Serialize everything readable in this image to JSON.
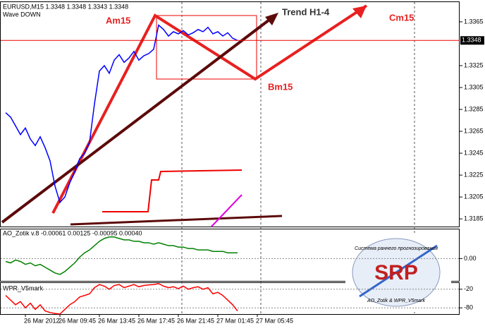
{
  "chart_data": [
    {
      "type": "line",
      "title": "EURUSD,M15  1.3348 1.3348 1.3343 1.3348",
      "subtitle": "Wave DOWN",
      "color": "#0000ff",
      "values": [
        1.3282,
        1.3278,
        1.327,
        1.3262,
        1.3268,
        1.3258,
        1.3252,
        1.326,
        1.325,
        1.3238,
        1.3215,
        1.32,
        1.3205,
        1.3218,
        1.3228,
        1.324,
        1.3245,
        1.3255,
        1.329,
        1.332,
        1.3325,
        1.3318,
        1.333,
        1.3335,
        1.3328,
        1.3332,
        1.3338,
        1.333,
        1.3334,
        1.3336,
        1.334,
        1.3362,
        1.3358,
        1.3352,
        1.3356,
        1.3354,
        1.3357,
        1.3353,
        1.3355,
        1.3358,
        1.3356,
        1.336,
        1.3354,
        1.3356,
        1.3352,
        1.3355,
        1.335,
        1.3348,
        null,
        null,
        null,
        null
      ],
      "ylim": [
        1.3178,
        1.3383
      ],
      "yticks": [
        1.3365,
        1.3325,
        1.3305,
        1.3285,
        1.3265,
        1.3245,
        1.3225,
        1.3205,
        1.3185
      ],
      "current_price": 1.3348,
      "annotations": [
        "Am15",
        "Bm15",
        "Cm15",
        "Trend H1-4"
      ]
    },
    {
      "type": "line",
      "title": "AO_Zotik v.8 -0.00061 0.00125 -0.00095 0.00040",
      "color": "#008000",
      "values": [
        -0.0002,
        -0.0003,
        -0.0001,
        -0.0002,
        -0.0004,
        -0.0003,
        -0.0005,
        -0.0004,
        -0.0006,
        -0.0008,
        -0.001,
        -0.0011,
        -0.0009,
        -0.0006,
        -0.0003,
        0.0001,
        0.0004,
        0.0006,
        0.0009,
        0.0012,
        0.0014,
        0.0015,
        0.0015,
        0.0014,
        0.0013,
        0.0013,
        0.0012,
        0.0012,
        0.0011,
        0.0011,
        0.001,
        0.0011,
        0.001,
        0.0009,
        0.0009,
        0.0008,
        0.0008,
        0.0007,
        0.0007,
        0.0006,
        0.0006,
        0.0006,
        0.0005,
        0.0005,
        0.0005,
        0.0004,
        0.0004,
        0.0004,
        null,
        null,
        null,
        null
      ],
      "ylim": [
        -0.00155,
        0.00203
      ],
      "yticks": [
        {
          "value": 0,
          "label": "0.00"
        }
      ]
    },
    {
      "type": "line",
      "title": "WPR_V5mark",
      "color": "#ff0000",
      "values": [
        -40,
        -55,
        -70,
        -60,
        -80,
        -65,
        -85,
        -70,
        -90,
        -95,
        -98,
        -100,
        -85,
        -70,
        -60,
        -45,
        -40,
        -35,
        -15,
        -5,
        -10,
        -20,
        -8,
        -5,
        -15,
        -10,
        -5,
        -12,
        -8,
        -6,
        -5,
        -2,
        -10,
        -15,
        -12,
        -18,
        -10,
        -20,
        -15,
        -12,
        -20,
        -15,
        -35,
        -30,
        -40,
        -55,
        -70,
        -90,
        null,
        null,
        null,
        null
      ],
      "ylim": [
        -100,
        0
      ],
      "yticks": [
        -20,
        -80
      ],
      "categories": [
        null,
        null,
        null,
        null,
        "26 Mar 2012",
        null,
        null,
        null,
        null,
        null,
        null,
        "26 Mar 09:45",
        null,
        null,
        null,
        null,
        null,
        null,
        null,
        "26 Mar 13:45",
        null,
        null,
        null,
        null,
        null,
        null,
        null,
        "26 Mar 17:45",
        null,
        null,
        null,
        null,
        null,
        null,
        null,
        "26 Mar 21:45",
        null,
        null,
        null,
        null,
        null,
        null,
        null,
        "27 Mar 01:45",
        null,
        null,
        null,
        null,
        null,
        null,
        null,
        "27 Mar 05:45"
      ]
    }
  ],
  "logo": {
    "arc_text": "Система раннего прогнозирования",
    "name": "SRP",
    "footer": "AO_Zotik & WPR_V5mark"
  }
}
